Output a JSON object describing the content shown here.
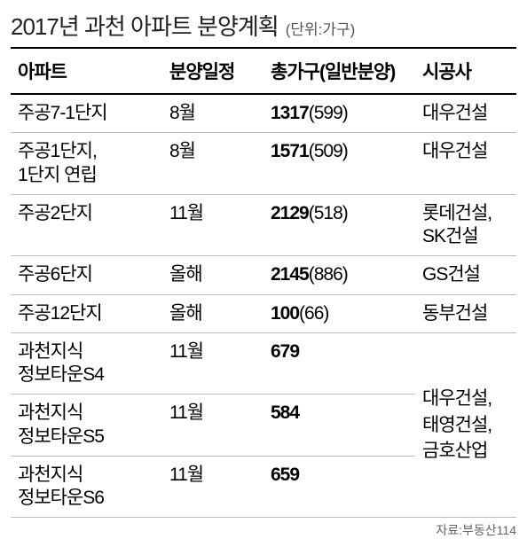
{
  "title": "2017년 과천 아파트 분양계획",
  "unit": "(단위:가구)",
  "columns": {
    "apt": "아파트",
    "schedule": "분양일정",
    "total": "총가구(일반분양)",
    "builder": "시공사"
  },
  "rows": [
    {
      "apt": "주공7-1단지",
      "schedule": "8월",
      "total_bold": "1317",
      "total_paren": "(599)",
      "builder": "대우건설"
    },
    {
      "apt": "주공1단지,\n1단지 연립",
      "schedule": "8월",
      "total_bold": "1571",
      "total_paren": "(509)",
      "builder": "대우건설"
    },
    {
      "apt": "주공2단지",
      "schedule": "11월",
      "total_bold": "2129",
      "total_paren": "(518)",
      "builder": "롯데건설,\nSK건설"
    },
    {
      "apt": "주공6단지",
      "schedule": "올해",
      "total_bold": "2145",
      "total_paren": "(886)",
      "builder": "GS건설"
    },
    {
      "apt": "주공12단지",
      "schedule": "올해",
      "total_bold": "100",
      "total_paren": "(66)",
      "builder": "동부건설"
    },
    {
      "apt": "과천지식\n정보타운S4",
      "schedule": "11월",
      "total_bold": "679",
      "total_paren": ""
    },
    {
      "apt": "과천지식\n정보타운S5",
      "schedule": "11월",
      "total_bold": "584",
      "total_paren": ""
    },
    {
      "apt": "과천지식\n정보타운S6",
      "schedule": "11월",
      "total_bold": "659",
      "total_paren": ""
    }
  ],
  "merged_builder": "대우건설,\n태영건설,\n금호산업",
  "source": "자료:부동산114",
  "colors": {
    "text": "#000000",
    "border_main": "#000000",
    "border_row": "#bbbbbb",
    "source_text": "#666666",
    "background": "#ffffff"
  }
}
